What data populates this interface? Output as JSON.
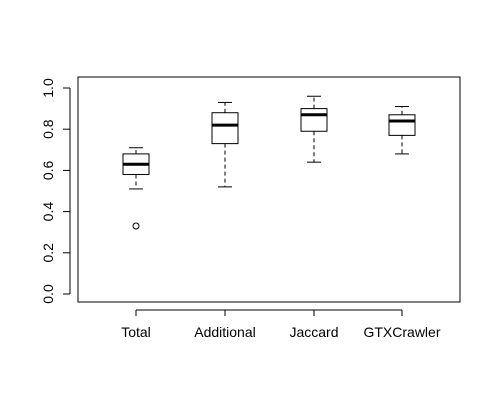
{
  "chart_data": {
    "type": "boxplot",
    "title": "",
    "xlabel": "",
    "ylabel": "",
    "ylim": [
      0.0,
      1.0
    ],
    "yticks": [
      "0.0",
      "0.2",
      "0.4",
      "0.6",
      "0.8",
      "1.0"
    ],
    "grid": false,
    "categories": [
      "Total",
      "Additional",
      "Jaccard",
      "GTXCrawler"
    ],
    "boxes": [
      {
        "category": "Total",
        "lower_whisker": 0.51,
        "q1": 0.58,
        "median": 0.63,
        "q3": 0.68,
        "upper_whisker": 0.71,
        "outliers": [
          0.33
        ]
      },
      {
        "category": "Additional",
        "lower_whisker": 0.52,
        "q1": 0.73,
        "median": 0.82,
        "q3": 0.88,
        "upper_whisker": 0.93,
        "outliers": []
      },
      {
        "category": "Jaccard",
        "lower_whisker": 0.64,
        "q1": 0.79,
        "median": 0.87,
        "q3": 0.9,
        "upper_whisker": 0.96,
        "outliers": []
      },
      {
        "category": "GTXCrawler",
        "lower_whisker": 0.68,
        "q1": 0.77,
        "median": 0.84,
        "q3": 0.87,
        "upper_whisker": 0.91,
        "outliers": []
      }
    ]
  }
}
